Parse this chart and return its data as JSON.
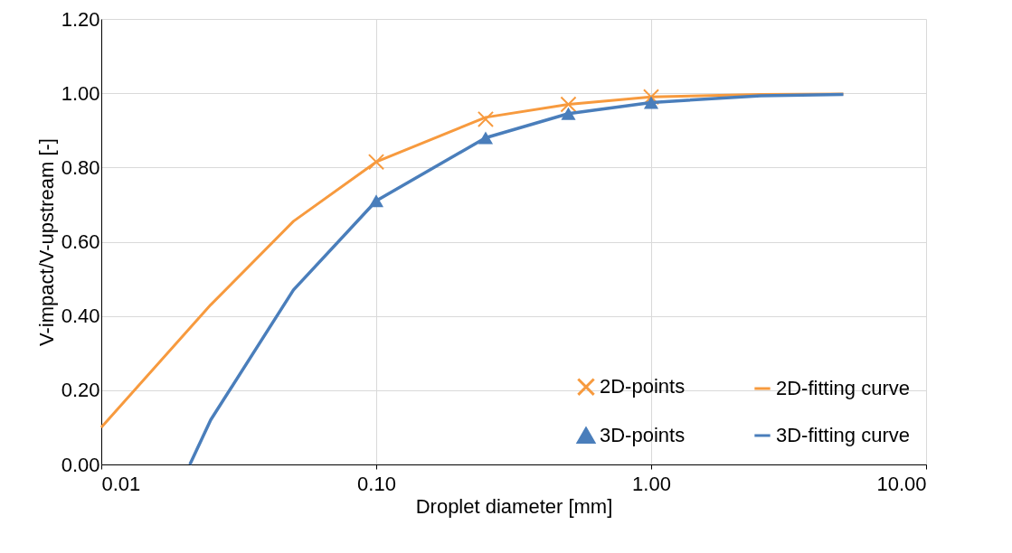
{
  "chart_data": {
    "type": "line",
    "xlabel": "Droplet diameter [mm]",
    "ylabel": "V-impact/V-upstream [-]",
    "log": "x",
    "grid": true,
    "legend": "bottom right",
    "line_style": "solid",
    "xlim": [
      0.01,
      10
    ],
    "xticks": [
      {
        "value": 0.01,
        "label": "0.01"
      },
      {
        "value": 0.1,
        "label": "0.10"
      },
      {
        "value": 1,
        "label": "1.00"
      },
      {
        "value": 10,
        "label": "10.00"
      }
    ],
    "ylim": [
      0,
      1.2
    ],
    "yticks": [
      {
        "value": 0,
        "label": "0.00"
      },
      {
        "value": 0.2,
        "label": "0.20"
      },
      {
        "value": 0.4,
        "label": "0.40"
      },
      {
        "value": 0.6,
        "label": "0.60"
      },
      {
        "value": 0.8,
        "label": "0.80"
      },
      {
        "value": 1,
        "label": "1.00"
      },
      {
        "value": 1.2,
        "label": "1.20"
      }
    ],
    "series": [
      {
        "name": "2D-points",
        "type": "scatter",
        "marker": "cross",
        "color": "#f79a3e",
        "x": [
          0.1,
          0.25,
          0.5,
          1.0
        ],
        "values": [
          0.815,
          0.93,
          0.97,
          0.99
        ]
      },
      {
        "name": "2D-fitting curve",
        "marker": "none",
        "color": "#f79a3e",
        "x": [
          0.01,
          0.025,
          0.05,
          0.1,
          0.25,
          0.5,
          1,
          2.5,
          5
        ],
        "values": [
          0.1,
          0.43,
          0.655,
          0.815,
          0.935,
          0.97,
          0.99,
          0.997,
          0.998
        ]
      },
      {
        "name": "3D-points",
        "type": "scatter",
        "marker": "triangle",
        "color": "#4a7ebb",
        "x": [
          0.1,
          0.25,
          0.5,
          1.0
        ],
        "values": [
          0.71,
          0.88,
          0.945,
          0.975
        ]
      },
      {
        "name": "3D-fitting curve",
        "marker": "none",
        "color": "#4a7ebb",
        "x": [
          0.021,
          0.025,
          0.05,
          0.1,
          0.25,
          0.5,
          1,
          2.5,
          5
        ],
        "values": [
          0.0,
          0.12,
          0.47,
          0.71,
          0.88,
          0.945,
          0.975,
          0.993,
          0.997
        ]
      }
    ]
  }
}
